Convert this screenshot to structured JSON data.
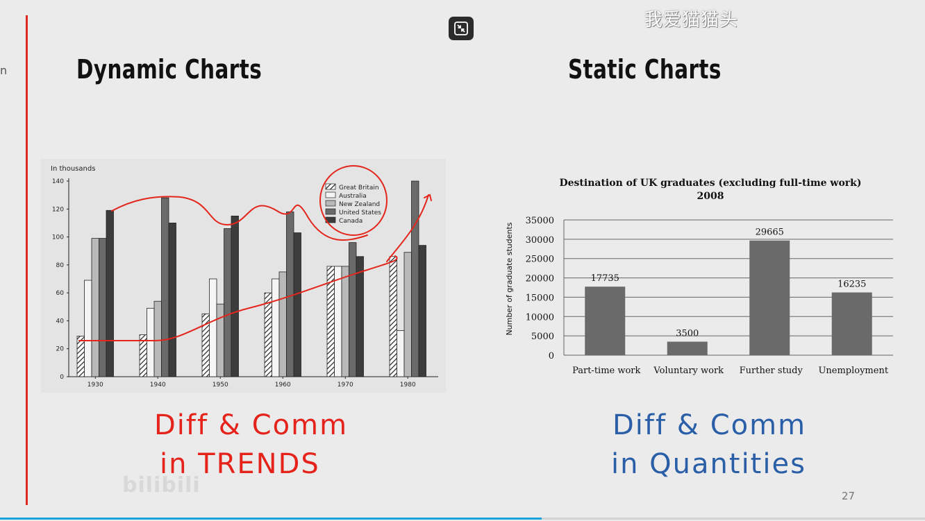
{
  "watermark": "我爱猫猫头",
  "left_edge_glyph": "n",
  "headings": {
    "dynamic": "Dynamic Charts",
    "static": "Static Charts"
  },
  "annotations": {
    "left_line1": "Diff & Comm",
    "left_line2": "in TRENDS",
    "right_line1": "Diff & Comm",
    "right_line2": "in Quantities"
  },
  "page_number": "27",
  "bilibili_logo": "bilibili",
  "colors": {
    "accent_red": "#e02a1f",
    "annot_blue": "#2a5fa8",
    "progress": "#1aa3d9"
  },
  "icons": {
    "exit_fullscreen": "exit-fullscreen-icon"
  },
  "chart_data": [
    {
      "type": "bar",
      "ylabel": "In thousands",
      "ylim": [
        0,
        140
      ],
      "yticks": [
        0,
        20,
        40,
        60,
        80,
        100,
        120,
        140
      ],
      "categories": [
        "1930",
        "1940",
        "1950",
        "1960",
        "1970",
        "1980"
      ],
      "series": [
        {
          "name": "Great Britain",
          "values": [
            29,
            30,
            45,
            60,
            79,
            86
          ]
        },
        {
          "name": "Australia",
          "values": [
            69,
            49,
            70,
            70,
            79,
            33
          ]
        },
        {
          "name": "New Zealand",
          "values": [
            99,
            54,
            52,
            75,
            79,
            89
          ]
        },
        {
          "name": "United States",
          "values": [
            99,
            128,
            106,
            118,
            96,
            140
          ]
        },
        {
          "name": "Canada",
          "values": [
            119,
            110,
            115,
            103,
            86,
            94
          ]
        }
      ],
      "legend": "top-right"
    },
    {
      "type": "bar",
      "title": "Destination of UK graduates (excluding full-time work)",
      "subtitle": "2008",
      "ylabel": "Number of graduate students",
      "ylim": [
        0,
        35000
      ],
      "yticks": [
        "0",
        "5000",
        "10000",
        "15000",
        "20000",
        "25000",
        "30000",
        "35000"
      ],
      "categories": [
        "Part-time work",
        "Voluntary work",
        "Further study",
        "Unemployment"
      ],
      "values": [
        17735,
        3500,
        29665,
        16235
      ],
      "data_labels": [
        "17735",
        "3500",
        "29665",
        "16235"
      ],
      "grid": true
    }
  ]
}
